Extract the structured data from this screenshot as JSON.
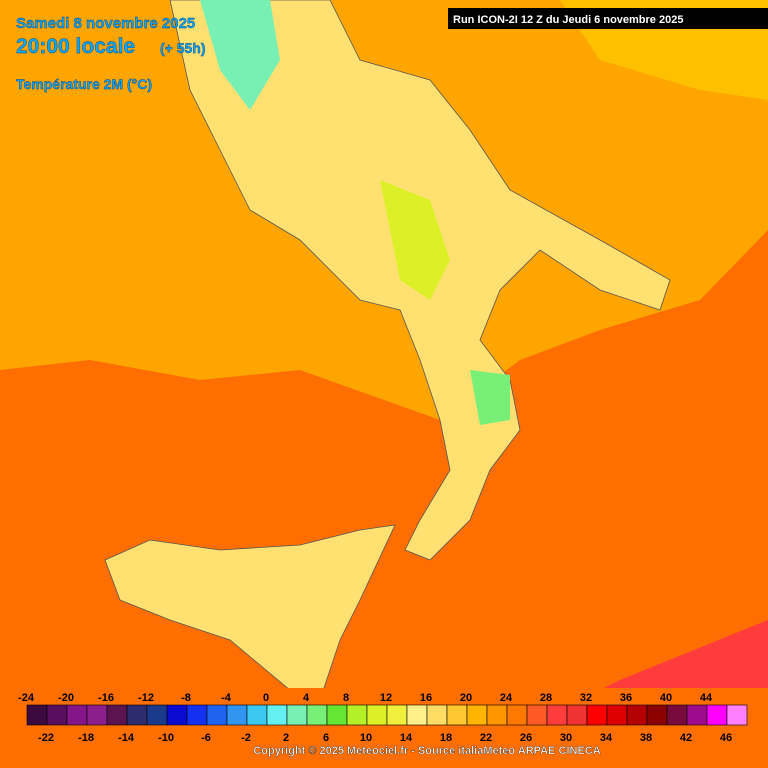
{
  "header": {
    "date": "Samedi 8 novembre 2025",
    "time": "20:00 locale",
    "lead": "(+ 55h)",
    "variable": "Température 2M (°C)"
  },
  "run": "Run ICON-2I 12 Z du Jeudi 6 novembre 2025",
  "copyright": "Copyright © 2025 Meteociel.fr - Source italiaMeteo ARPAE CINECA",
  "legend": {
    "values": [
      -24,
      -22,
      -20,
      -18,
      -16,
      -14,
      -12,
      -10,
      -8,
      -6,
      -4,
      -2,
      0,
      2,
      4,
      6,
      8,
      10,
      12,
      14,
      16,
      18,
      20,
      22,
      24,
      26,
      28,
      30,
      32,
      34,
      36,
      38,
      40,
      42,
      44,
      46
    ],
    "colors": [
      "#3b0a3f",
      "#5a0f5e",
      "#85168a",
      "#8c1f8c",
      "#5c1450",
      "#2c2c6e",
      "#1c3a8c",
      "#0a0ad0",
      "#1430f0",
      "#1e64f0",
      "#3296f0",
      "#3cc8f0",
      "#64f0f0",
      "#78f0b4",
      "#78f078",
      "#64e632",
      "#b4f028",
      "#dcf028",
      "#f0f03c",
      "#fff08c",
      "#ffdc64",
      "#ffc832",
      "#ffb400",
      "#ff9600",
      "#ff7800",
      "#ff5a28",
      "#ff3c3c",
      "#f03232",
      "#ff0000",
      "#dc0000",
      "#b40000",
      "#8c0000",
      "#780a3c",
      "#a00a8c",
      "#ff00ff",
      "#ff80ff"
    ]
  }
}
